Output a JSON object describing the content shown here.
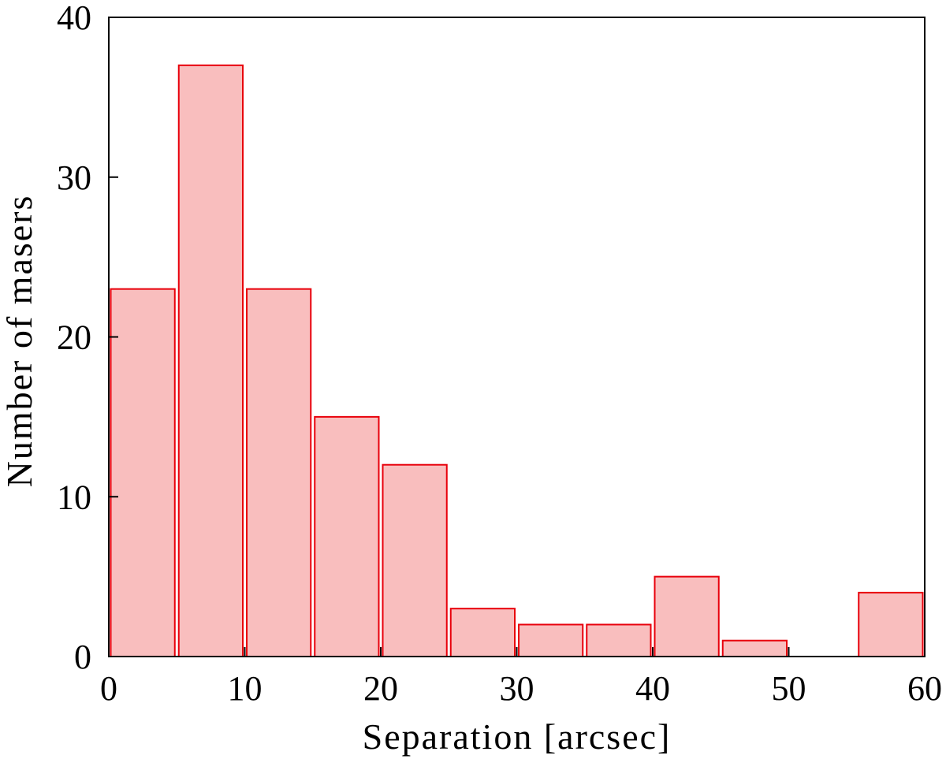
{
  "chart_data": {
    "type": "bar",
    "title": "",
    "xlabel": "Separation [arcsec]",
    "ylabel": "Number of masers",
    "xlim": [
      0,
      60
    ],
    "ylim": [
      0,
      40
    ],
    "bin_width": 5,
    "bins": [
      {
        "x_start": 0,
        "x_end": 5,
        "count": 23
      },
      {
        "x_start": 5,
        "x_end": 10,
        "count": 37
      },
      {
        "x_start": 10,
        "x_end": 15,
        "count": 23
      },
      {
        "x_start": 15,
        "x_end": 20,
        "count": 15
      },
      {
        "x_start": 20,
        "x_end": 25,
        "count": 12
      },
      {
        "x_start": 25,
        "x_end": 30,
        "count": 3
      },
      {
        "x_start": 30,
        "x_end": 35,
        "count": 2
      },
      {
        "x_start": 35,
        "x_end": 40,
        "count": 2
      },
      {
        "x_start": 40,
        "x_end": 45,
        "count": 5
      },
      {
        "x_start": 45,
        "x_end": 50,
        "count": 1
      },
      {
        "x_start": 50,
        "x_end": 55,
        "count": 0
      },
      {
        "x_start": 55,
        "x_end": 60,
        "count": 4
      }
    ],
    "x_ticks": [
      "0",
      "10",
      "20",
      "30",
      "40",
      "50",
      "60"
    ],
    "y_ticks": [
      "0",
      "10",
      "20",
      "30",
      "40"
    ],
    "grid": false,
    "colors": {
      "bar_fill": "#f9bebe",
      "bar_edge": "#e8000b",
      "axis": "#000000"
    }
  }
}
